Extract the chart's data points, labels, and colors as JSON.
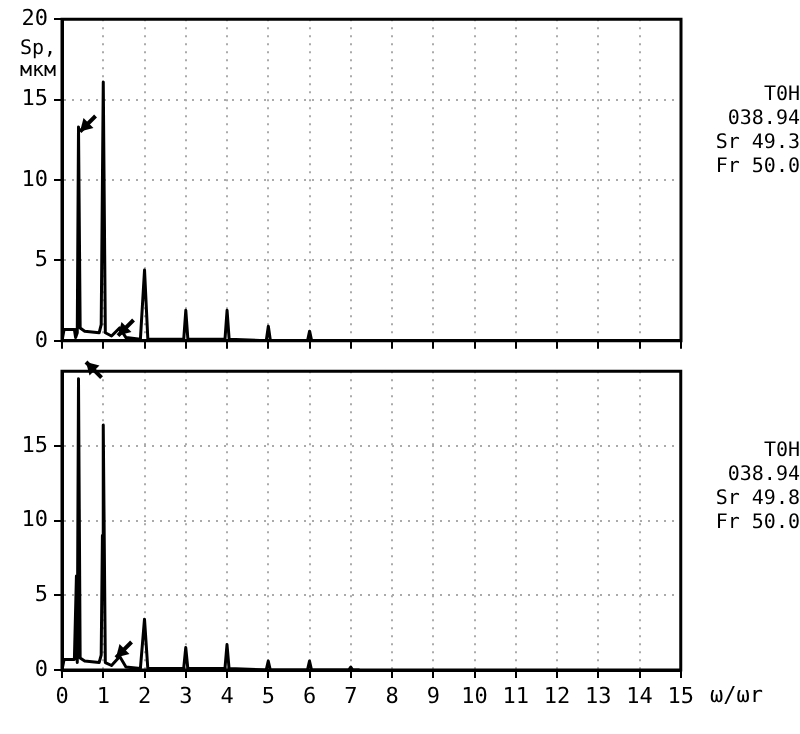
{
  "chart_data": [
    {
      "type": "line",
      "ylabel": "Sp, мкм",
      "color": "#000000",
      "marker": "none",
      "line_style": "solid",
      "grid": true,
      "tick_labels": "y",
      "x": [
        0,
        0.05,
        0.3,
        0.33,
        0.37,
        0.4,
        0.44,
        0.55,
        0.9,
        0.95,
        1,
        1.05,
        1.2,
        1.4,
        1.55,
        1.9,
        2,
        2.08,
        2.95,
        3,
        3.05,
        3.95,
        4,
        4.05,
        4.95,
        5,
        5.05,
        5.95,
        6,
        6.05,
        6.1
      ],
      "values": [
        0,
        0.7,
        0.7,
        0.2,
        0.5,
        13.3,
        0.8,
        0.6,
        0.5,
        1,
        16.1,
        0.5,
        0.3,
        0.8,
        0.2,
        0.1,
        4.4,
        0.1,
        0.1,
        1.9,
        0.1,
        0.1,
        1.9,
        0.1,
        0,
        0.9,
        0,
        0,
        0.6,
        0,
        0
      ],
      "xlim": [
        0,
        15
      ],
      "xticks": [
        0,
        1,
        2,
        3,
        4,
        5,
        6,
        7,
        8,
        9,
        10,
        11,
        12,
        13,
        14,
        15
      ],
      "ylim": [
        0,
        20
      ],
      "yticks": [
        0,
        5,
        10,
        15,
        20
      ],
      "annotations": [
        "T0H",
        "038.94",
        "Sr 49.3",
        "Fr 50.0"
      ]
    },
    {
      "type": "line",
      "xlabel": "ω/ωr",
      "color": "#000000",
      "marker": "none",
      "line_style": "solid",
      "grid": true,
      "x": [
        0,
        0.05,
        0.3,
        0.35,
        0.37,
        0.4,
        0.44,
        0.55,
        0.9,
        0.95,
        0.98,
        1,
        1.05,
        1.2,
        1.4,
        1.55,
        1.9,
        2,
        2.08,
        2.95,
        3,
        3.05,
        3.95,
        4,
        4.05,
        4.95,
        5,
        5.05,
        5.95,
        6,
        6.05,
        6.95,
        7,
        7.05,
        7.2
      ],
      "values": [
        0,
        0.7,
        0.7,
        6.3,
        0.5,
        19.5,
        0.8,
        0.6,
        0.5,
        1,
        9,
        16.4,
        0.5,
        0.3,
        0.9,
        0.2,
        0.1,
        3.4,
        0.1,
        0.1,
        1.5,
        0.1,
        0.1,
        1.7,
        0.1,
        0,
        0.6,
        0,
        0,
        0.6,
        0,
        0,
        0.2,
        0,
        0
      ],
      "xlim": [
        0,
        15
      ],
      "xticks": [
        0,
        1,
        2,
        3,
        4,
        5,
        6,
        7,
        8,
        9,
        10,
        11,
        12,
        13,
        14,
        15
      ],
      "ylim": [
        0,
        20
      ],
      "yticks": [
        0,
        5,
        10,
        15
      ],
      "annotations": [
        "T0H",
        "038.94",
        "Sr 49.8",
        "Fr 50.0"
      ]
    }
  ]
}
